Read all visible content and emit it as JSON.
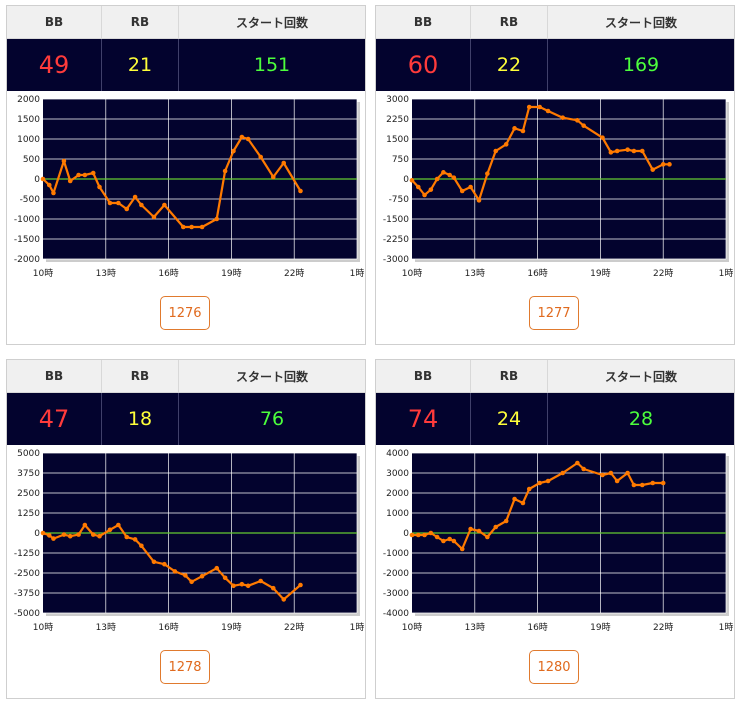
{
  "labels": {
    "bb": "BB",
    "rb": "RB",
    "start": "スタート回数"
  },
  "x_ticks": [
    "10時",
    "13時",
    "16時",
    "19時",
    "22時",
    "1時"
  ],
  "colors": {
    "line": "#ff7a00",
    "background": "#03032e",
    "grid": "#ffffff",
    "zero_line": "#66cc33",
    "bb": "#ff3b3b",
    "rb": "#ffff3a",
    "start": "#4cff3c"
  },
  "cards": [
    {
      "bb": "49",
      "rb": "21",
      "start": "151",
      "button": "1276"
    },
    {
      "bb": "60",
      "rb": "22",
      "start": "169",
      "button": "1277"
    },
    {
      "bb": "47",
      "rb": "18",
      "start": "76",
      "button": "1278"
    },
    {
      "bb": "74",
      "rb": "24",
      "start": "28",
      "button": "1280"
    }
  ],
  "chart_data": [
    {
      "type": "line",
      "xlim": [
        10,
        25
      ],
      "ylim": [
        -2000,
        2000
      ],
      "yticks": [
        "2000",
        "1500",
        "1000",
        "500",
        "0",
        "-500",
        "-1000",
        "-1500",
        "-2000"
      ],
      "x": [
        10.0,
        10.3,
        10.5,
        11.0,
        11.3,
        11.7,
        12.0,
        12.4,
        12.7,
        13.2,
        13.6,
        14.0,
        14.4,
        14.7,
        15.3,
        15.8,
        16.7,
        17.1,
        17.6,
        18.3,
        18.7,
        19.1,
        19.5,
        19.8,
        20.4,
        21.0,
        21.5,
        22.3
      ],
      "y": [
        0,
        -150,
        -350,
        450,
        -50,
        100,
        100,
        150,
        -200,
        -600,
        -600,
        -750,
        -450,
        -650,
        -950,
        -650,
        -1200,
        -1200,
        -1200,
        -1000,
        200,
        700,
        1050,
        1000,
        550,
        50,
        400,
        -300
      ]
    },
    {
      "type": "line",
      "xlim": [
        10,
        25
      ],
      "ylim": [
        -3000,
        3000
      ],
      "yticks": [
        "3000",
        "2250",
        "1500",
        "750",
        "0",
        "-750",
        "-1500",
        "-2250",
        "-3000"
      ],
      "x": [
        10.0,
        10.3,
        10.6,
        10.9,
        11.2,
        11.5,
        11.8,
        12.0,
        12.4,
        12.8,
        13.2,
        13.6,
        14.0,
        14.5,
        14.9,
        15.3,
        15.6,
        16.1,
        16.5,
        17.2,
        17.9,
        18.2,
        19.1,
        19.5,
        19.8,
        20.3,
        20.6,
        21.0,
        21.5,
        22.0,
        22.3
      ],
      "y": [
        -50,
        -300,
        -600,
        -400,
        0,
        250,
        150,
        50,
        -450,
        -300,
        -800,
        200,
        1050,
        1300,
        1900,
        1800,
        2700,
        2700,
        2550,
        2300,
        2200,
        2000,
        1550,
        1000,
        1050,
        1100,
        1050,
        1050,
        350,
        550,
        550
      ]
    },
    {
      "type": "line",
      "xlim": [
        10,
        25
      ],
      "ylim": [
        -5000,
        5000
      ],
      "yticks": [
        "5000",
        "3750",
        "2500",
        "1250",
        "0",
        "-1250",
        "-2500",
        "-3750",
        "-5000"
      ],
      "x": [
        10.0,
        10.3,
        10.5,
        11.0,
        11.3,
        11.7,
        12.0,
        12.4,
        12.7,
        13.2,
        13.6,
        14.0,
        14.4,
        14.7,
        15.3,
        15.8,
        16.3,
        16.8,
        17.1,
        17.6,
        18.3,
        18.7,
        19.1,
        19.5,
        19.8,
        20.4,
        21.0,
        21.5,
        22.3
      ],
      "y": [
        0,
        -150,
        -350,
        -100,
        -200,
        -100,
        500,
        -100,
        -200,
        200,
        500,
        -250,
        -400,
        -800,
        -1800,
        -1950,
        -2400,
        -2650,
        -3050,
        -2700,
        -2200,
        -2800,
        -3300,
        -3200,
        -3300,
        -3000,
        -3450,
        -4150,
        -3250
      ]
    },
    {
      "type": "line",
      "xlim": [
        10,
        25
      ],
      "ylim": [
        -4000,
        4000
      ],
      "yticks": [
        "4000",
        "3000",
        "2000",
        "1000",
        "0",
        "-1000",
        "-2000",
        "-3000",
        "-4000"
      ],
      "x": [
        10.0,
        10.3,
        10.6,
        10.9,
        11.2,
        11.5,
        11.8,
        12.0,
        12.4,
        12.8,
        13.2,
        13.6,
        14.0,
        14.5,
        14.9,
        15.3,
        15.6,
        16.1,
        16.5,
        17.2,
        17.9,
        18.2,
        19.1,
        19.5,
        19.8,
        20.3,
        20.6,
        21.0,
        21.5,
        22.0
      ],
      "y": [
        -100,
        -100,
        -100,
        0,
        -200,
        -400,
        -300,
        -400,
        -800,
        200,
        100,
        -200,
        300,
        600,
        1700,
        1500,
        2200,
        2500,
        2600,
        3000,
        3500,
        3200,
        2900,
        3000,
        2600,
        3000,
        2400,
        2400,
        2500,
        2500
      ]
    }
  ]
}
